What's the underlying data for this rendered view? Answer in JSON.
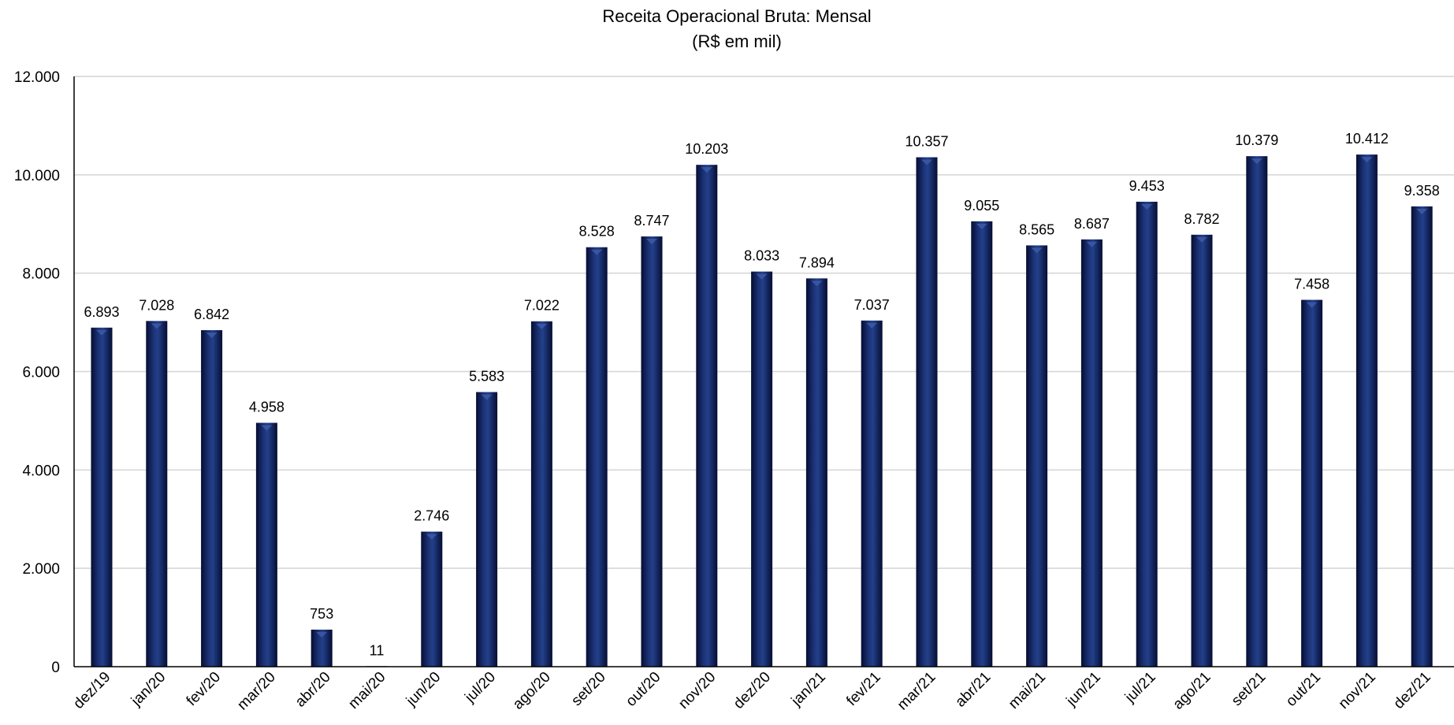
{
  "chart_data": {
    "type": "bar",
    "title": "Receita Operacional Bruta: Mensal",
    "subtitle": "(R$ em mil)",
    "xlabel": "",
    "ylabel": "",
    "ylim": [
      0,
      12000
    ],
    "yticks": [
      "0",
      "2.000",
      "4.000",
      "6.000",
      "8.000",
      "10.000",
      "12.000"
    ],
    "grid": true,
    "legend": "none",
    "bar_color": "#0f1f5c",
    "categories": [
      "dez/19",
      "jan/20",
      "fev/20",
      "mar/20",
      "abr/20",
      "mai/20",
      "jun/20",
      "jul/20",
      "ago/20",
      "set/20",
      "out/20",
      "nov/20",
      "dez/20",
      "jan/21",
      "fev/21",
      "mar/21",
      "abr/21",
      "mai/21",
      "jun/21",
      "jul/21",
      "ago/21",
      "set/21",
      "out/21",
      "nov/21",
      "dez/21"
    ],
    "values": [
      6893,
      7028,
      6842,
      4958,
      753,
      11,
      2746,
      5583,
      7022,
      8528,
      8747,
      10203,
      8033,
      7894,
      7037,
      10357,
      9055,
      8565,
      8687,
      9453,
      8782,
      10379,
      7458,
      10412,
      9358
    ],
    "data_labels": [
      "6.893",
      "7.028",
      "6.842",
      "4.958",
      "753",
      "11",
      "2.746",
      "5.583",
      "7.022",
      "8.528",
      "8.747",
      "10.203",
      "8.033",
      "7.894",
      "7.037",
      "10.357",
      "9.055",
      "8.565",
      "8.687",
      "9.453",
      "8.782",
      "10.379",
      "7.458",
      "10.412",
      "9.358"
    ]
  }
}
